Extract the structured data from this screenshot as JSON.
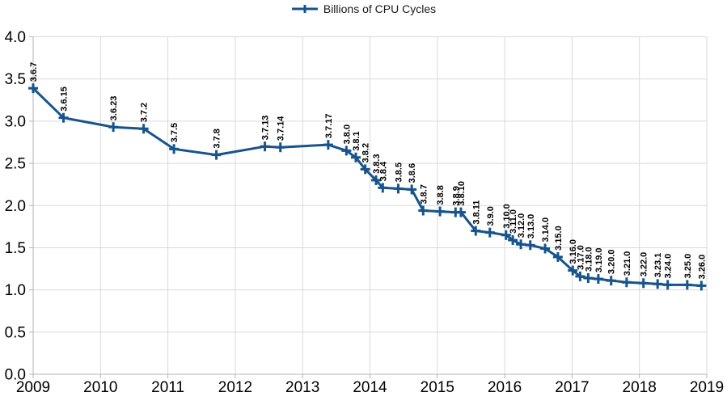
{
  "chart_data": {
    "type": "line",
    "title": "",
    "legend_label": "Billions of CPU Cycles",
    "legend_position": "top-center",
    "xlabel": "",
    "ylabel": "",
    "xlim": [
      2009,
      2019
    ],
    "ylim": [
      0.0,
      4.0
    ],
    "grid": true,
    "grid_color": "#d9d9d9",
    "axis_color": "#b3b3b3",
    "text_color": "#000000",
    "background": "#ffffff",
    "x_ticks": [
      {
        "v": 2009,
        "label": "2009"
      },
      {
        "v": 2010,
        "label": "2010"
      },
      {
        "v": 2011,
        "label": "2011"
      },
      {
        "v": 2012,
        "label": "2012"
      },
      {
        "v": 2013,
        "label": "2013"
      },
      {
        "v": 2014,
        "label": "2014"
      },
      {
        "v": 2015,
        "label": "2015"
      },
      {
        "v": 2016,
        "label": "2016"
      },
      {
        "v": 2017,
        "label": "2017"
      },
      {
        "v": 2018,
        "label": "2018"
      },
      {
        "v": 2019,
        "label": "2019"
      }
    ],
    "y_ticks": [
      {
        "v": 0.0,
        "label": "0.0"
      },
      {
        "v": 0.5,
        "label": "0.5"
      },
      {
        "v": 1.0,
        "label": "1.0"
      },
      {
        "v": 1.5,
        "label": "1.5"
      },
      {
        "v": 2.0,
        "label": "2.0"
      },
      {
        "v": 2.5,
        "label": "2.5"
      },
      {
        "v": 3.0,
        "label": "3.0"
      },
      {
        "v": 3.5,
        "label": "3.5"
      },
      {
        "v": 4.0,
        "label": "4.0"
      }
    ],
    "series": [
      {
        "name": "Billions of CPU Cycles",
        "color": "#17548c",
        "marker": "plus",
        "points": [
          {
            "label": "3.6.7",
            "x": 2009.0,
            "y": 3.39
          },
          {
            "label": "3.6.15",
            "x": 2009.45,
            "y": 3.04
          },
          {
            "label": "3.6.23",
            "x": 2010.19,
            "y": 2.93
          },
          {
            "label": "3.7.2",
            "x": 2010.64,
            "y": 2.91
          },
          {
            "label": "3.7.5",
            "x": 2011.09,
            "y": 2.67
          },
          {
            "label": "3.7.8",
            "x": 2011.72,
            "y": 2.6
          },
          {
            "label": "3.7.13",
            "x": 2012.44,
            "y": 2.7
          },
          {
            "label": "3.7.14",
            "x": 2012.67,
            "y": 2.69
          },
          {
            "label": "3.7.17",
            "x": 2013.38,
            "y": 2.72
          },
          {
            "label": "3.8.0",
            "x": 2013.65,
            "y": 2.65
          },
          {
            "label": "3.8.1",
            "x": 2013.79,
            "y": 2.57
          },
          {
            "label": "3.8.2",
            "x": 2013.93,
            "y": 2.43
          },
          {
            "label": "3.8.3",
            "x": 2014.09,
            "y": 2.3
          },
          {
            "label": "3.8.4",
            "x": 2014.19,
            "y": 2.21
          },
          {
            "label": "3.8.5",
            "x": 2014.42,
            "y": 2.2
          },
          {
            "label": "3.8.6",
            "x": 2014.62,
            "y": 2.19
          },
          {
            "label": "3.8.7",
            "x": 2014.79,
            "y": 1.94
          },
          {
            "label": "3.8.8",
            "x": 2015.04,
            "y": 1.93
          },
          {
            "label": "3.8.9",
            "x": 2015.27,
            "y": 1.92
          },
          {
            "label": "3.8.10",
            "x": 2015.35,
            "y": 1.92
          },
          {
            "label": "3.8.11",
            "x": 2015.57,
            "y": 1.7
          },
          {
            "label": "3.9.0",
            "x": 2015.78,
            "y": 1.68
          },
          {
            "label": "3.10.0",
            "x": 2016.02,
            "y": 1.65
          },
          {
            "label": "3.11.0",
            "x": 2016.12,
            "y": 1.59
          },
          {
            "label": "3.12.0",
            "x": 2016.24,
            "y": 1.54
          },
          {
            "label": "3.13.0",
            "x": 2016.38,
            "y": 1.53
          },
          {
            "label": "3.14.0",
            "x": 2016.6,
            "y": 1.49
          },
          {
            "label": "3.15.0",
            "x": 2016.79,
            "y": 1.39
          },
          {
            "label": "3.16.0",
            "x": 2017.01,
            "y": 1.23
          },
          {
            "label": "3.17.0",
            "x": 2017.12,
            "y": 1.16
          },
          {
            "label": "3.18.0",
            "x": 2017.24,
            "y": 1.14
          },
          {
            "label": "3.19.0",
            "x": 2017.39,
            "y": 1.13
          },
          {
            "label": "3.20.0",
            "x": 2017.58,
            "y": 1.11
          },
          {
            "label": "3.21.0",
            "x": 2017.81,
            "y": 1.09
          },
          {
            "label": "3.22.0",
            "x": 2018.06,
            "y": 1.08
          },
          {
            "label": "3.23.1",
            "x": 2018.27,
            "y": 1.07
          },
          {
            "label": "3.24.0",
            "x": 2018.42,
            "y": 1.06
          },
          {
            "label": "3.25.0",
            "x": 2018.71,
            "y": 1.06
          },
          {
            "label": "3.26.0",
            "x": 2018.92,
            "y": 1.05
          }
        ]
      }
    ]
  }
}
